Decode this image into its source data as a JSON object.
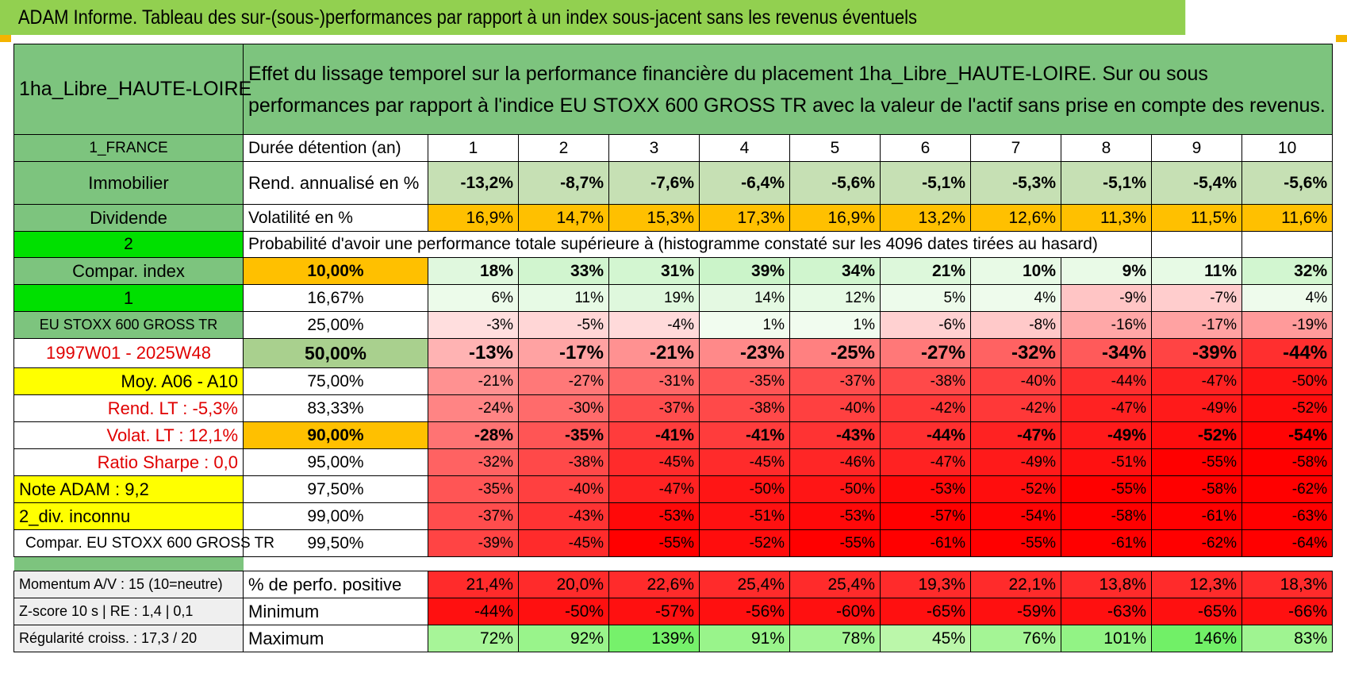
{
  "title": "ADAM Informe. Tableau des sur-(sous-)performances par rapport à un index sous-jacent sans les revenus éventuels",
  "header": {
    "asset": "1ha_Libre_HAUTE-LOIRE",
    "description": "Effet du lissage temporel sur la performance financière du placement 1ha_Libre_HAUTE-LOIRE. Sur ou sous performances par rapport à l'indice EU STOXX 600 GROSS TR avec la valeur de l'actif sans prise en compte des revenus."
  },
  "years_row": {
    "left": "1_FRANCE",
    "label": "Durée détention (an)",
    "years": [
      "1",
      "2",
      "3",
      "4",
      "5",
      "6",
      "7",
      "8",
      "9",
      "10"
    ]
  },
  "rend_row": {
    "left": "Immobilier",
    "label": "Rend. annualisé en %",
    "values": [
      "-13,2%",
      "-8,7%",
      "-7,6%",
      "-6,4%",
      "-5,6%",
      "-5,1%",
      "-5,3%",
      "-5,1%",
      "-5,4%",
      "-5,6%"
    ]
  },
  "vol_row": {
    "left": "Dividende",
    "label": "Volatilité en %",
    "values": [
      "16,9%",
      "14,7%",
      "15,3%",
      "17,3%",
      "16,9%",
      "13,2%",
      "12,6%",
      "11,3%",
      "11,5%",
      "11,6%"
    ]
  },
  "prob_header": {
    "left": "2",
    "text": "Probabilité d'avoir une performance totale supérieure à (histogramme constaté sur les 4096 dates tirées au hasard)"
  },
  "quantile_rows": [
    {
      "left": "Compar. index",
      "pct": "10,00%",
      "values": [
        "18%",
        "33%",
        "31%",
        "39%",
        "34%",
        "21%",
        "10%",
        "9%",
        "11%",
        "32%"
      ]
    },
    {
      "left": "1",
      "pct": "16,67%",
      "values": [
        "6%",
        "11%",
        "19%",
        "14%",
        "12%",
        "5%",
        "4%",
        "-9%",
        "-7%",
        "4%"
      ]
    },
    {
      "left": "EU STOXX 600 GROSS TR",
      "pct": "25,00%",
      "values": [
        "-3%",
        "-5%",
        "-4%",
        "1%",
        "1%",
        "-6%",
        "-8%",
        "-16%",
        "-17%",
        "-19%"
      ]
    },
    {
      "left": "1997W01 - 2025W48",
      "pct": "50,00%",
      "values": [
        "-13%",
        "-17%",
        "-21%",
        "-23%",
        "-25%",
        "-27%",
        "-32%",
        "-34%",
        "-39%",
        "-44%"
      ]
    },
    {
      "left": "Moy. A06 - A10",
      "pct": "75,00%",
      "values": [
        "-21%",
        "-27%",
        "-31%",
        "-35%",
        "-37%",
        "-38%",
        "-40%",
        "-44%",
        "-47%",
        "-50%"
      ]
    },
    {
      "left": "Rend. LT :    -5,3%",
      "pct": "83,33%",
      "values": [
        "-24%",
        "-30%",
        "-37%",
        "-38%",
        "-40%",
        "-42%",
        "-42%",
        "-47%",
        "-49%",
        "-52%"
      ]
    },
    {
      "left": "Volat. LT :    12,1%",
      "pct": "90,00%",
      "values": [
        "-28%",
        "-35%",
        "-41%",
        "-41%",
        "-43%",
        "-44%",
        "-47%",
        "-49%",
        "-52%",
        "-54%"
      ]
    },
    {
      "left": "Ratio Sharpe :     0,0",
      "pct": "95,00%",
      "values": [
        "-32%",
        "-38%",
        "-45%",
        "-45%",
        "-46%",
        "-47%",
        "-49%",
        "-51%",
        "-55%",
        "-58%"
      ]
    },
    {
      "left": "Note ADAM : 9,2",
      "pct": "97,50%",
      "values": [
        "-35%",
        "-40%",
        "-47%",
        "-50%",
        "-50%",
        "-53%",
        "-52%",
        "-55%",
        "-58%",
        "-62%"
      ]
    },
    {
      "left": "2_div. inconnu",
      "pct": "99,00%",
      "values": [
        "-37%",
        "-43%",
        "-53%",
        "-51%",
        "-53%",
        "-57%",
        "-54%",
        "-58%",
        "-61%",
        "-63%"
      ]
    },
    {
      "left": "Compar. EU STOXX 600 GROSS TR",
      "pct": "99,50%",
      "values": [
        "-39%",
        "-45%",
        "-55%",
        "-52%",
        "-55%",
        "-61%",
        "-55%",
        "-61%",
        "-62%",
        "-64%"
      ]
    }
  ],
  "summary_rows": [
    {
      "left": "Momentum A/V : 15 (10=neutre)",
      "label": "% de perfo. positive",
      "values": [
        "21,4%",
        "20,0%",
        "22,6%",
        "25,4%",
        "25,4%",
        "19,3%",
        "22,1%",
        "13,8%",
        "12,3%",
        "18,3%"
      ]
    },
    {
      "left": "Z-score 10 s | RE : 1,4 | 0,1",
      "label": "Minimum",
      "values": [
        "-44%",
        "-50%",
        "-57%",
        "-56%",
        "-60%",
        "-65%",
        "-59%",
        "-63%",
        "-65%",
        "-66%"
      ]
    },
    {
      "left": "Régularité croiss. : 17,3 / 20",
      "label": "Maximum",
      "values": [
        "72%",
        "92%",
        "139%",
        "91%",
        "78%",
        "45%",
        "76%",
        "101%",
        "146%",
        "83%"
      ]
    }
  ]
}
